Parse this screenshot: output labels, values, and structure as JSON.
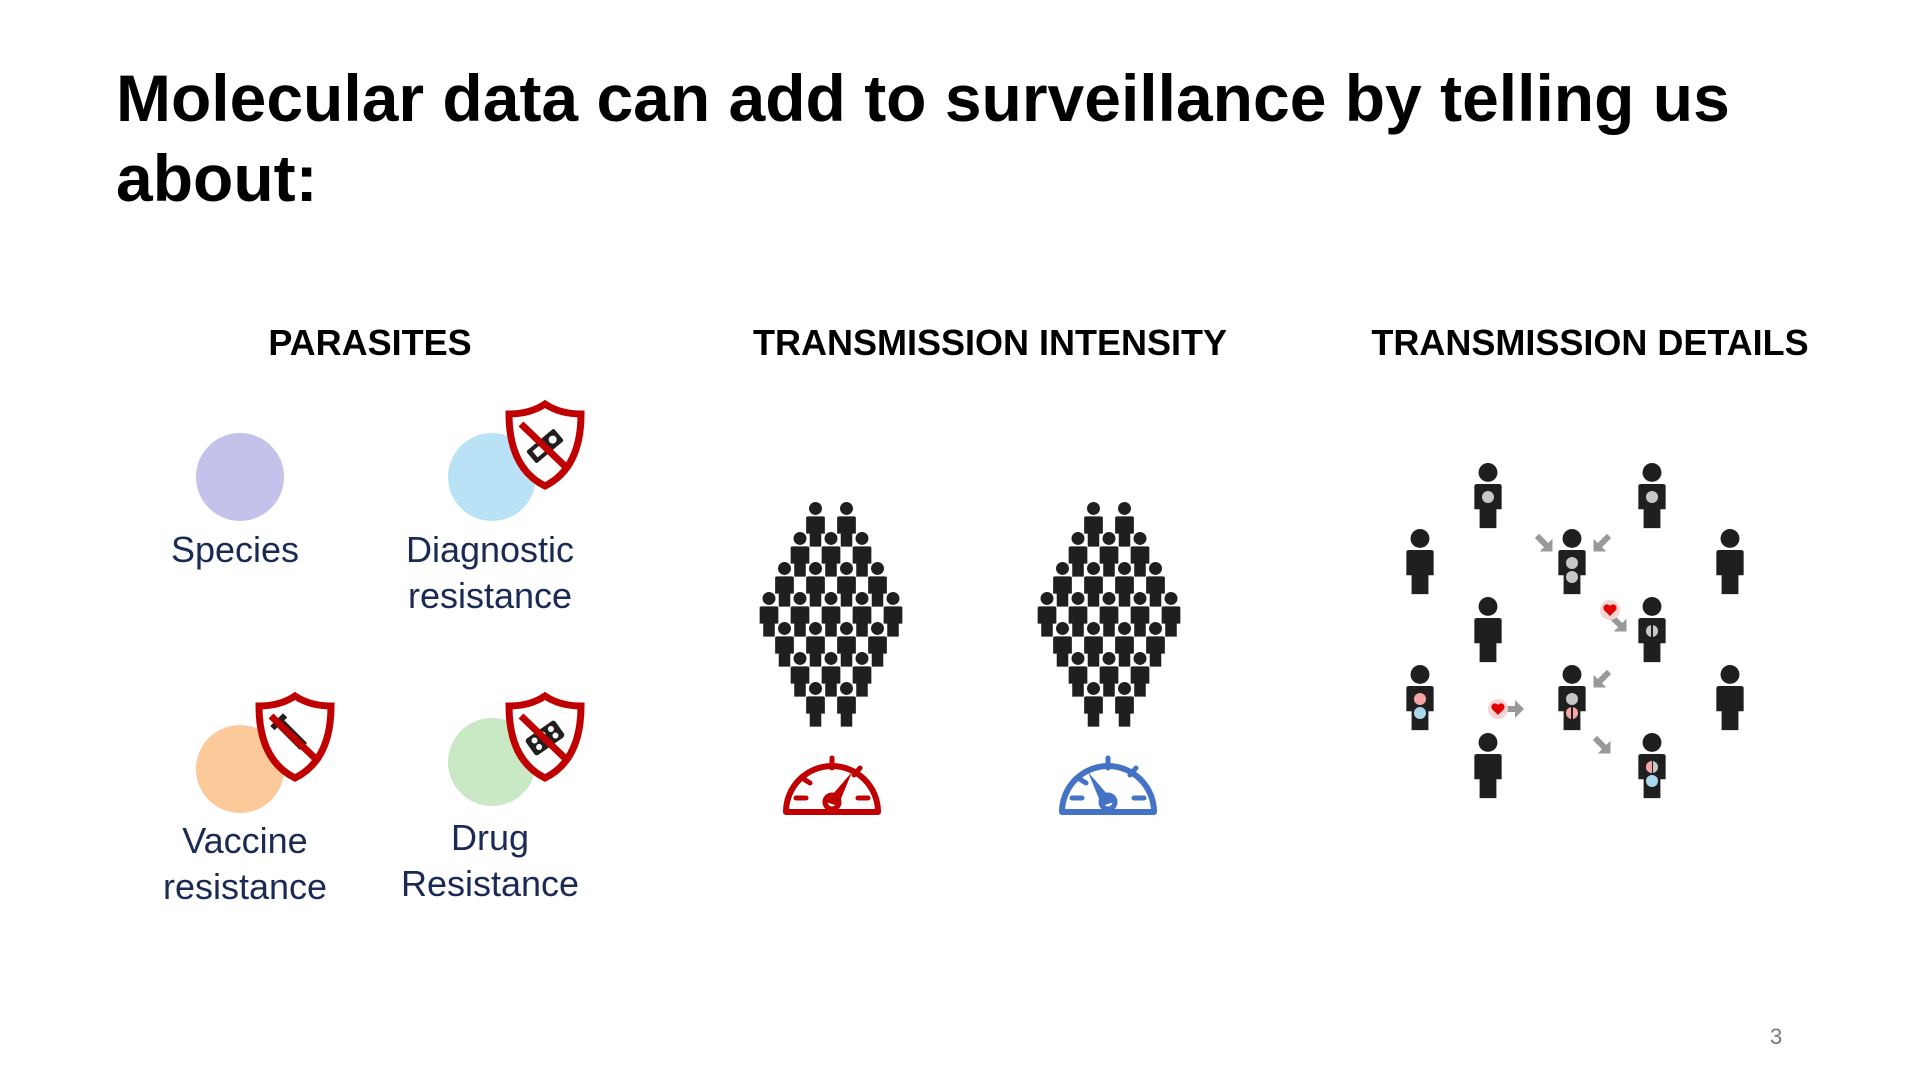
{
  "title": "Molecular data can add to surveillance by telling us about:",
  "sections": {
    "parasites": {
      "heading": "PARASITES",
      "items": [
        {
          "line1": "Species",
          "line2": "",
          "color": "#c4c1ea",
          "icon": "none"
        },
        {
          "line1": "Diagnostic",
          "line2": "resistance",
          "color": "#b9e2f7",
          "icon": "diagnostic-test-prohibited-shield"
        },
        {
          "line1": "Vaccine",
          "line2": "resistance",
          "color": "#fcc99a",
          "icon": "syringe-prohibited-shield"
        },
        {
          "line1": "Drug",
          "line2": "Resistance",
          "color": "#c9e8c4",
          "icon": "pill-pack-prohibited-shield"
        }
      ],
      "shield_color": "#c00000"
    },
    "intensity": {
      "heading": "TRANSMISSION INTENSITY",
      "crowd_icon": "people-crowd",
      "gauge_high_color": "#c00000",
      "gauge_low_color": "#4472c4"
    },
    "details": {
      "heading": "TRANSMISSION DETAILS",
      "icons": [
        "person-icon",
        "arrow-icon",
        "heart-icon"
      ],
      "person_color": "#1f1f1f",
      "arrow_color": "#999999",
      "heart_color": "#e00000",
      "dot_colors": [
        "#c8c8c8",
        "#f4a6a6",
        "#a9d8ee"
      ]
    }
  },
  "page_number": "3"
}
